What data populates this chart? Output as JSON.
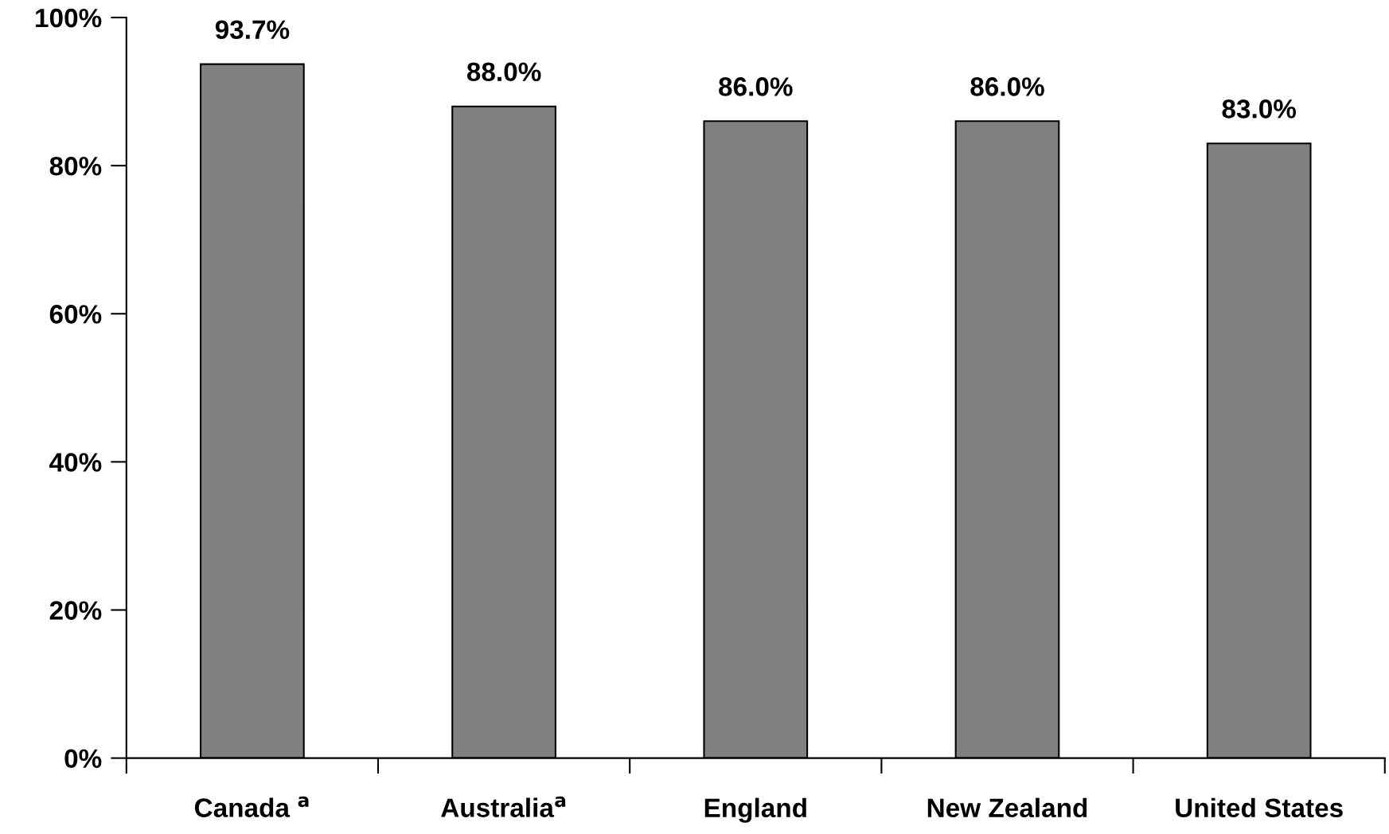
{
  "chart_data": {
    "type": "bar",
    "categories": [
      "Canada $^{a}$",
      "Australia$^{a}$",
      "England",
      "New Zealand",
      "United States"
    ],
    "values": [
      93.7,
      88.0,
      86.0,
      86.0,
      83.0
    ],
    "value_labels": [
      "93.7%",
      "88.0%",
      "86.0%",
      "86.0%",
      "83.0%"
    ],
    "color": "#808080",
    "ylim": [
      0,
      100
    ],
    "yticks": [
      {
        "value": 0,
        "label": "0%"
      },
      {
        "value": 20,
        "label": "20%"
      },
      {
        "value": 40,
        "label": "40%"
      },
      {
        "value": 60,
        "label": "60%"
      },
      {
        "value": 80,
        "label": "80%"
      },
      {
        "value": 100,
        "label": "100%"
      }
    ],
    "grid": false,
    "legend": false
  }
}
